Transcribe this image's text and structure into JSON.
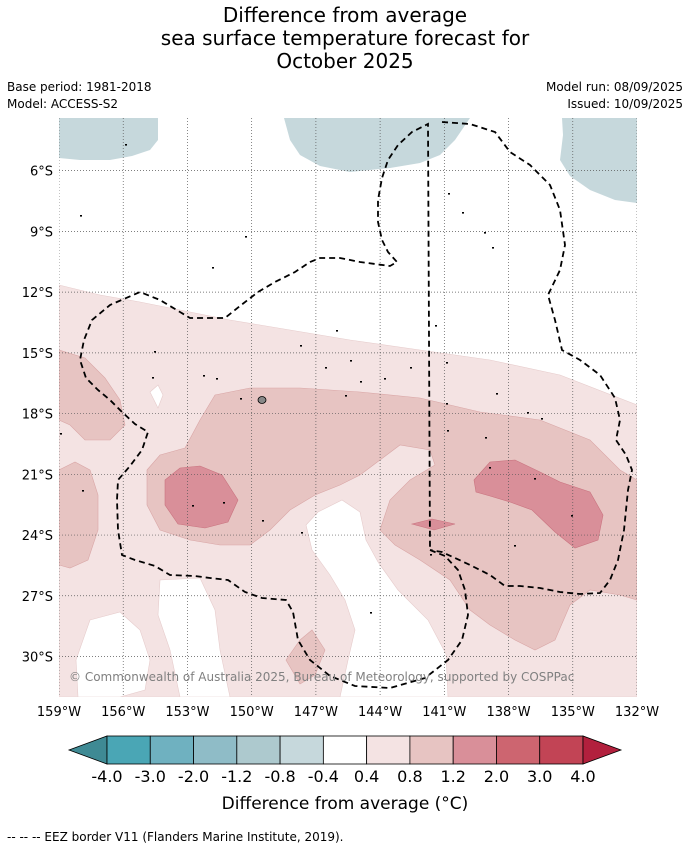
{
  "title": {
    "line1": "Difference from average",
    "line2": "sea surface temperature forecast for",
    "line3": "October 2025"
  },
  "meta": {
    "base_period": "Base period: 1981-2018",
    "model": "Model: ACCESS-S2",
    "model_run": "Model run: 08/09/2025",
    "issued": "Issued: 10/09/2025"
  },
  "map": {
    "lon_range": [
      -159,
      -132
    ],
    "lat_range": [
      -32,
      -3.4
    ],
    "lat_ticks": [
      "6°S",
      "9°S",
      "12°S",
      "15°S",
      "18°S",
      "21°S",
      "24°S",
      "27°S",
      "30°S"
    ],
    "lon_ticks": [
      "159°W",
      "156°W",
      "153°W",
      "150°W",
      "147°W",
      "144°W",
      "141°W",
      "138°W",
      "135°W",
      "132°W"
    ],
    "copyright": "© Commonwealth of Australia 2025, Bureau of Meteorology, supported by COSPPac"
  },
  "colorbar": {
    "labels": [
      "-4.0",
      "-3.0",
      "-2.0",
      "-1.2",
      "-0.8",
      "-0.4",
      "0.4",
      "0.8",
      "1.2",
      "2.0",
      "3.0",
      "4.0"
    ],
    "colors": [
      "#3f8a94",
      "#4aa6b5",
      "#6fb1c0",
      "#8fbcc7",
      "#adc9ce",
      "#c6d8dc",
      "#ffffff",
      "#f4e3e3",
      "#e7c4c2",
      "#d98f99",
      "#cd6570",
      "#c24455",
      "#b2203d"
    ],
    "title": "Difference from average (°C)"
  },
  "footnote": "--  --  -- EEZ border V11 (Flanders Marine Institute, 2019).",
  "palette": {
    "cool": "#c6d8dc",
    "warm1": "#f4e3e3",
    "warm2": "#e7c4c2",
    "warm3": "#d98f99"
  }
}
